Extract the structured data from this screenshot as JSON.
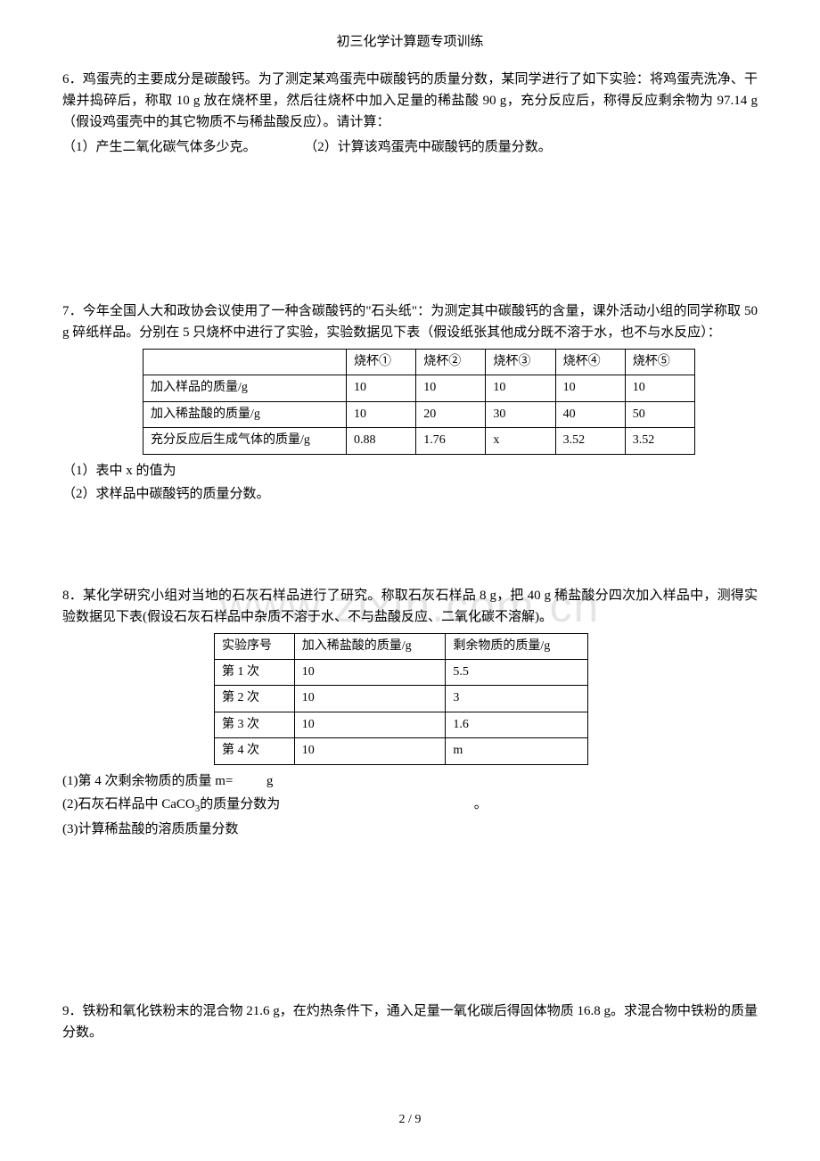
{
  "header": {
    "title": "初三化学计算题专项训练"
  },
  "question6": {
    "text": "6．鸡蛋壳的主要成分是碳酸钙。为了测定某鸡蛋壳中碳酸钙的质量分数，某同学进行了如下实验：将鸡蛋壳洗净、干燥并捣碎后，称取 10 g 放在烧杯里，然后往烧杯中加入足量的稀盐酸 90 g，充分反应后，称得反应剩余物为 97.14 g（假设鸡蛋壳中的其它物质不与稀盐酸反应）。请计算：",
    "sub1": "（1）产生二氧化碳气体多少克。",
    "sub2": "（2）计算该鸡蛋壳中碳酸钙的质量分数。"
  },
  "question7": {
    "text": "7．今年全国人大和政协会议使用了一种含碳酸钙的\"石头纸\"：为测定其中碳酸钙的含量，课外活动小组的同学称取 50 g 碎纸样品。分别在 5 只烧杯中进行了实验，实验数据见下表（假设纸张其他成分既不溶于水，也不与水反应）：",
    "table": {
      "headers": [
        "",
        "烧杯①",
        "烧杯②",
        "烧杯③",
        "烧杯④",
        "烧杯⑤"
      ],
      "rows": [
        [
          "加入样品的质量/g",
          "10",
          "10",
          "10",
          "10",
          "10"
        ],
        [
          "加入稀盐酸的质量/g",
          "10",
          "20",
          "30",
          "40",
          "50"
        ],
        [
          "充分反应后生成气体的质量/g",
          "0.88",
          "1.76",
          "x",
          "3.52",
          "3.52"
        ]
      ]
    },
    "sub1": "（1）表中 x 的值为",
    "sub2": "（2）求样品中碳酸钙的质量分数。"
  },
  "question8": {
    "text": "8．某化学研究小组对当地的石灰石样品进行了研究。称取石灰石样品 8 g，把 40 g 稀盐酸分四次加入样品中，测得实验数据见下表(假设石灰石样品中杂质不溶于水、不与盐酸反应、二氧化碳不溶解)。",
    "table": {
      "headers": [
        "实验序号",
        "加入稀盐酸的质量/g",
        "剩余物质的质量/g"
      ],
      "rows": [
        [
          "第 1 次",
          "10",
          "5.5"
        ],
        [
          "第 2 次",
          "10",
          "3"
        ],
        [
          "第 3 次",
          "10",
          "1.6"
        ],
        [
          "第 4 次",
          "10",
          "m"
        ]
      ]
    },
    "sub1_pre": "(1)第 4 次剩余物质的质量 m=",
    "sub1_post": "g",
    "sub2_pre": "(2)石灰石样品中 CaCO",
    "sub2_sub": "3",
    "sub2_post": "的质量分数为",
    "sub2_end": "。",
    "sub3": "(3)计算稀盐酸的溶质质量分数"
  },
  "question9": {
    "text": "9．铁粉和氧化铁粉末的混合物 21.6 g，在灼热条件下，通入足量一氧化碳后得固体物质 16.8 g。求混合物中铁粉的质量分数。"
  },
  "watermark": "www.zixin.com.cn",
  "footer": "2  /  9"
}
